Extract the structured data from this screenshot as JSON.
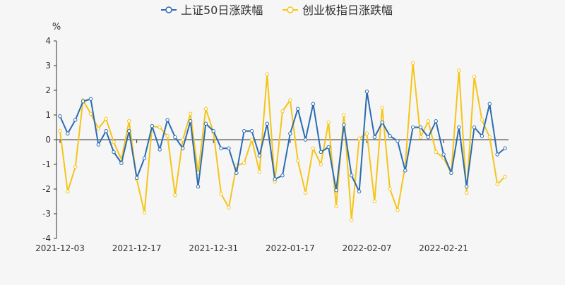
{
  "chart_data": {
    "type": "line",
    "y_unit_label": "%",
    "ylim": [
      -4,
      4
    ],
    "y_ticks": [
      4,
      3,
      2,
      1,
      0,
      -1,
      -2,
      -3,
      -4
    ],
    "x_tick_labels": [
      "2021-12-03",
      "2021-12-17",
      "2021-12-31",
      "2022-01-17",
      "2022-02-07",
      "2022-02-21"
    ],
    "x_tick_indices": [
      0,
      10,
      20,
      30,
      40,
      50
    ],
    "grid": false,
    "legend_position": "top-center",
    "series": [
      {
        "name": "上证50日涨跌幅",
        "color": "#2b6cb0",
        "values": [
          0.95,
          0.25,
          0.8,
          1.55,
          1.65,
          -0.2,
          0.35,
          -0.5,
          -0.95,
          0.35,
          -1.55,
          -0.75,
          0.55,
          -0.4,
          0.8,
          0.1,
          -0.35,
          0.75,
          -1.9,
          0.65,
          0.35,
          -0.35,
          -0.35,
          -1.35,
          0.35,
          0.35,
          -0.65,
          0.65,
          -1.6,
          -1.45,
          0.25,
          1.25,
          0.0,
          1.45,
          -0.5,
          -0.3,
          -2.05,
          0.6,
          -1.45,
          -2.1,
          1.95,
          0.1,
          0.7,
          0.15,
          -0.05,
          -1.25,
          0.5,
          0.5,
          0.1,
          0.75,
          -0.6,
          -1.35,
          0.5,
          -1.9,
          0.5,
          0.15,
          1.45,
          -0.6,
          -0.35
        ]
      },
      {
        "name": "创业板指日涨跌幅",
        "color": "#f5c518",
        "values": [
          0.35,
          -2.1,
          -1.1,
          1.6,
          1.05,
          0.45,
          0.85,
          -0.1,
          -0.8,
          0.75,
          -1.6,
          -2.95,
          0.55,
          0.5,
          0.15,
          -2.25,
          0.0,
          1.05,
          -1.35,
          1.25,
          0.3,
          -2.2,
          -2.75,
          -1.05,
          -0.95,
          0.0,
          -1.3,
          2.65,
          -1.7,
          1.15,
          1.6,
          -0.85,
          -2.15,
          -0.35,
          -1.0,
          0.7,
          -2.7,
          1.0,
          -3.25,
          0.05,
          0.25,
          -2.5,
          1.3,
          -2.0,
          -2.85,
          -1.05,
          3.1,
          0.1,
          0.75,
          -0.5,
          -0.75,
          -1.35,
          2.8,
          -2.15,
          2.55,
          0.8,
          0.1,
          -1.8,
          -1.5
        ]
      }
    ]
  }
}
